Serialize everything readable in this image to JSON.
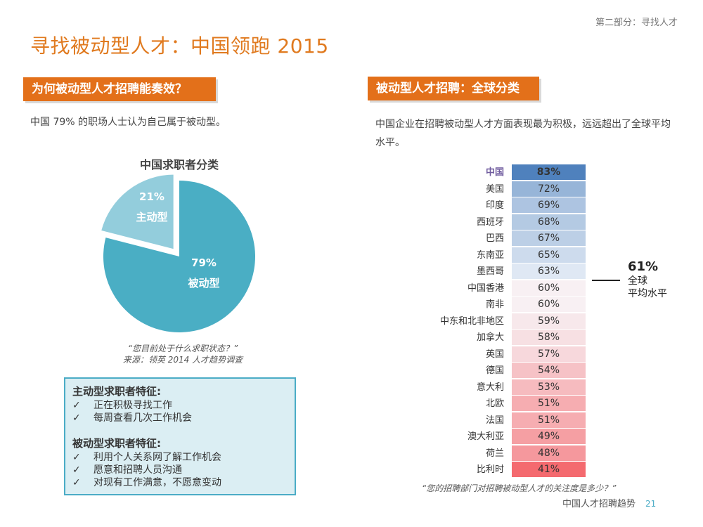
{
  "header": {
    "section_label": "第二部分：寻找人才",
    "title": "寻找被动型人才：中国领跑 2015"
  },
  "left": {
    "heading": "为何被动型人才招聘能奏效？",
    "intro": "中国 79% 的职场人士认为自己属于被动型。",
    "source_line1": "“您目前处于什么求职状态？”",
    "source_line2": "来源：领英 2014 人才趋势调查"
  },
  "traits": {
    "active_title": "主动型求职者特征:",
    "active_items": [
      "正在积极寻找工作",
      "每周查看几次工作机会"
    ],
    "passive_title": "被动型求职者特征:",
    "passive_items": [
      "利用个人关系网了解工作机会",
      "愿意和招聘人员沟通",
      "对现有工作满意，不愿意变动"
    ],
    "check": "✓"
  },
  "right": {
    "heading": "被动型人才招聘：全球分类",
    "intro": "中国企业在招聘被动型人才方面表现最为积极，远远超出了全球平均水平。",
    "source": "“您的招聘部门对招聘被动型人才的关注度是多少？”",
    "avg_value": "61%",
    "avg_label_1": "全球",
    "avg_label_2": "平均水平"
  },
  "footer": {
    "text": "中国人才招聘趋势",
    "page": "21"
  },
  "chart_data": [
    {
      "type": "pie",
      "title": "中国求职者分类",
      "slices": [
        {
          "label": "被动型",
          "value": 79,
          "display": "79%",
          "color": "#4aaec4"
        },
        {
          "label": "主动型",
          "value": 21,
          "display": "21%",
          "color": "#93cddc"
        }
      ]
    },
    {
      "type": "table",
      "title": "被动型人才招聘：全球分类",
      "categories": [
        "中国",
        "美国",
        "印度",
        "西班牙",
        "巴西",
        "东南亚",
        "墨西哥",
        "中国香港",
        "南非",
        "中东和北非地区",
        "加拿大",
        "英国",
        "德国",
        "意大利",
        "北欧",
        "法国",
        "澳大利亚",
        "荷兰",
        "比利时"
      ],
      "values": [
        83,
        72,
        69,
        68,
        67,
        65,
        63,
        60,
        60,
        59,
        58,
        57,
        54,
        53,
        51,
        51,
        49,
        48,
        41
      ],
      "unit": "%",
      "highlight": "中国",
      "global_average": 61
    }
  ]
}
